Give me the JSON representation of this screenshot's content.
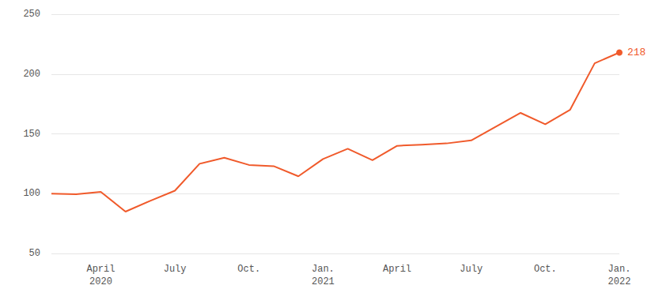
{
  "chart_data": {
    "type": "line",
    "categories": [
      null,
      null,
      "April\n2020",
      null,
      null,
      "July",
      null,
      null,
      "Oct.",
      null,
      null,
      "Jan.\n2021",
      null,
      null,
      "April",
      null,
      null,
      "July",
      null,
      null,
      "Oct.",
      null,
      null,
      "Jan.\n2022"
    ],
    "values": [
      100,
      99.5,
      101.5,
      85,
      94,
      102.5,
      125,
      130,
      124,
      123,
      114.5,
      129,
      137.5,
      128,
      140,
      141,
      142,
      144.5,
      156,
      167.5,
      158,
      170,
      209,
      218
    ],
    "color": "#f05a2b",
    "ylim": [
      50,
      250
    ],
    "yticks": [
      50,
      100,
      150,
      200,
      250
    ],
    "grid": true,
    "annotations": [
      {
        "index": 23,
        "text": "218"
      }
    ]
  }
}
